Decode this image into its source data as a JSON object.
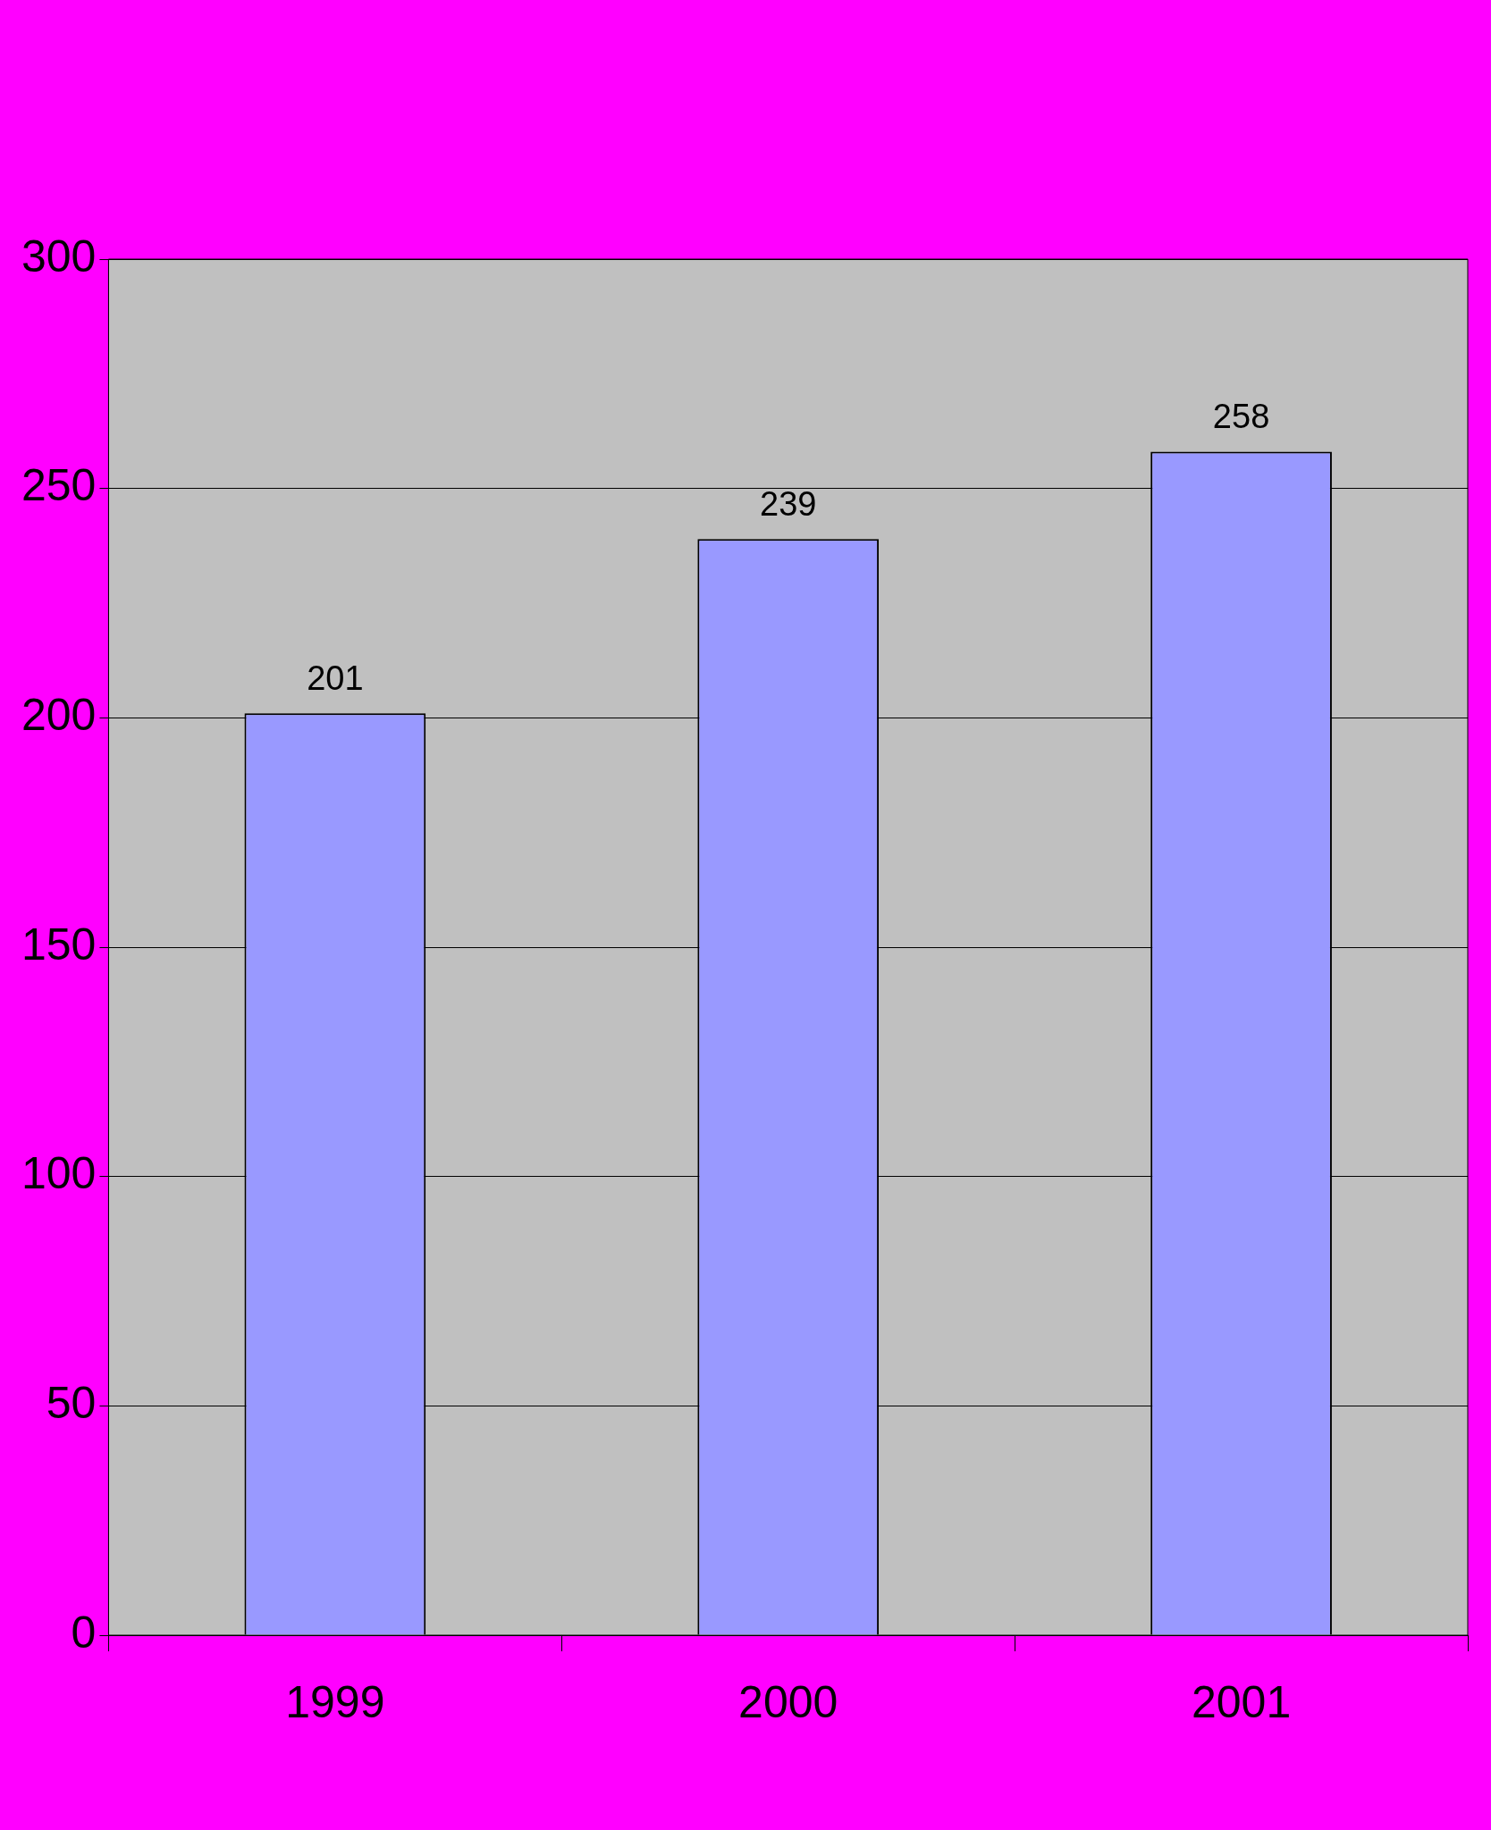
{
  "chart_data": {
    "type": "bar",
    "categories": [
      "1999",
      "2000",
      "2001"
    ],
    "values": [
      201,
      239,
      258
    ],
    "color": "#9999ff",
    "ylim": [
      0,
      300
    ],
    "yticks": [
      0,
      50,
      100,
      150,
      200,
      250,
      300
    ],
    "grid": "y",
    "data_labels": true,
    "legend": false
  }
}
